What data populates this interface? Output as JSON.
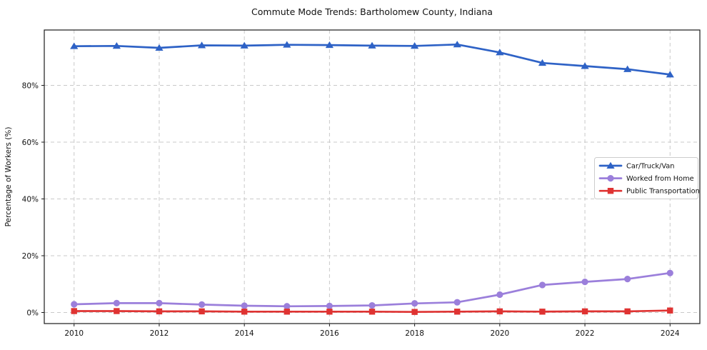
{
  "chart_data": {
    "type": "line",
    "title": "Commute Mode Trends: Bartholomew County, Indiana",
    "xlabel": "",
    "ylabel": "Percentage of Workers (%)",
    "x": [
      2010,
      2011,
      2012,
      2013,
      2014,
      2015,
      2016,
      2017,
      2018,
      2019,
      2020,
      2021,
      2022,
      2023,
      2024
    ],
    "series": [
      {
        "id": "car-truck-van",
        "name": "Car/Truck/Van",
        "color": "#2e62c6",
        "marker": "triangle",
        "values": [
          93.8,
          93.9,
          93.2,
          94.1,
          94.0,
          94.3,
          94.2,
          94.0,
          93.9,
          94.4,
          91.6,
          87.9,
          86.8,
          85.7,
          83.8
        ]
      },
      {
        "id": "worked-from-home",
        "name": "Worked from Home",
        "color": "#9b7fdb",
        "marker": "circle",
        "values": [
          2.9,
          3.3,
          3.3,
          2.8,
          2.4,
          2.2,
          2.3,
          2.5,
          3.2,
          3.6,
          6.3,
          9.7,
          10.8,
          11.8,
          13.9
        ]
      },
      {
        "id": "public-transportation",
        "name": "Public Transportation",
        "color": "#df3332",
        "marker": "square",
        "values": [
          0.5,
          0.5,
          0.4,
          0.4,
          0.3,
          0.3,
          0.3,
          0.3,
          0.2,
          0.3,
          0.4,
          0.3,
          0.4,
          0.4,
          0.7
        ]
      }
    ],
    "xlim": [
      2009.3,
      2024.7
    ],
    "ylim": [
      -3.9,
      99.5
    ],
    "xticks": [
      {
        "value": 2010,
        "label": "2010"
      },
      {
        "value": 2012,
        "label": "2012"
      },
      {
        "value": 2014,
        "label": "2014"
      },
      {
        "value": 2016,
        "label": "2016"
      },
      {
        "value": 2018,
        "label": "2018"
      },
      {
        "value": 2020,
        "label": "2020"
      },
      {
        "value": 2022,
        "label": "2022"
      },
      {
        "value": 2024,
        "label": "2024"
      }
    ],
    "yticks": [
      {
        "value": 0,
        "label": "0%"
      },
      {
        "value": 20,
        "label": "20%"
      },
      {
        "value": 40,
        "label": "40%"
      },
      {
        "value": 60,
        "label": "60%"
      },
      {
        "value": 80,
        "label": "80%"
      }
    ],
    "grid": true,
    "legend_position": "center-right"
  }
}
